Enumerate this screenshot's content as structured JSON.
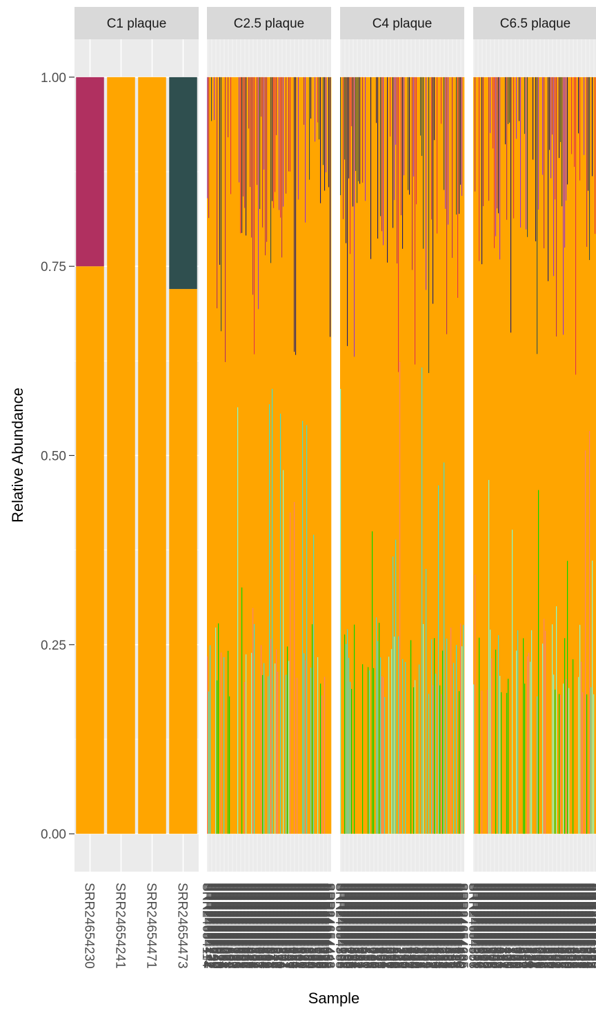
{
  "chart_data": {
    "type": "bar",
    "stacked": true,
    "xlabel": "Sample",
    "ylabel": "Relative Abundance",
    "ylim": [
      -0.05,
      1.05
    ],
    "y_ticks": [
      "0.00",
      "0.25",
      "0.50",
      "0.75",
      "1.00"
    ],
    "y_tick_values": [
      0,
      0.25,
      0.5,
      0.75,
      1.0
    ],
    "grid": true,
    "legend": "none",
    "colors": {
      "dominant": "#FFA500",
      "maroon": "#B03060",
      "darkslate": "#2F4F4F",
      "purple": "#9932CC",
      "red": "#E0314B",
      "navy": "#191970",
      "aquamarine": "#7FFFD4",
      "green": "#00D800",
      "salmon": "#FA8072",
      "turquoise": "#40E0D0",
      "panel_bg": "#EBEBEB",
      "strip_bg": "#D9D9D9"
    },
    "panels": [
      {
        "title": "C1 plaque",
        "samples": [
          "SRR24654230",
          "SRR24654241",
          "SRR24654471",
          "SRR24654473"
        ],
        "stacks": [
          [
            {
              "color": "#FFA500",
              "value": 0.75
            },
            {
              "color": "#B03060",
              "value": 0.25
            }
          ],
          [
            {
              "color": "#FFA500",
              "value": 1.0
            }
          ],
          [
            {
              "color": "#FFA500",
              "value": 1.0
            }
          ],
          [
            {
              "color": "#FFA500",
              "value": 0.72
            },
            {
              "color": "#2F4F4F",
              "value": 0.28
            }
          ]
        ]
      },
      {
        "title": "C2.5 plaque",
        "dense": true,
        "n_samples": 90,
        "seed": 25,
        "notes": "Sample labels are overplotted and illegible."
      },
      {
        "title": "C4 plaque",
        "dense": true,
        "n_samples": 90,
        "seed": 40,
        "notes": "Sample labels are overplotted and illegible."
      },
      {
        "title": "C6.5 plaque",
        "dense": true,
        "n_samples": 90,
        "seed": 65,
        "notes": "Sample labels are overplotted and illegible."
      }
    ]
  }
}
